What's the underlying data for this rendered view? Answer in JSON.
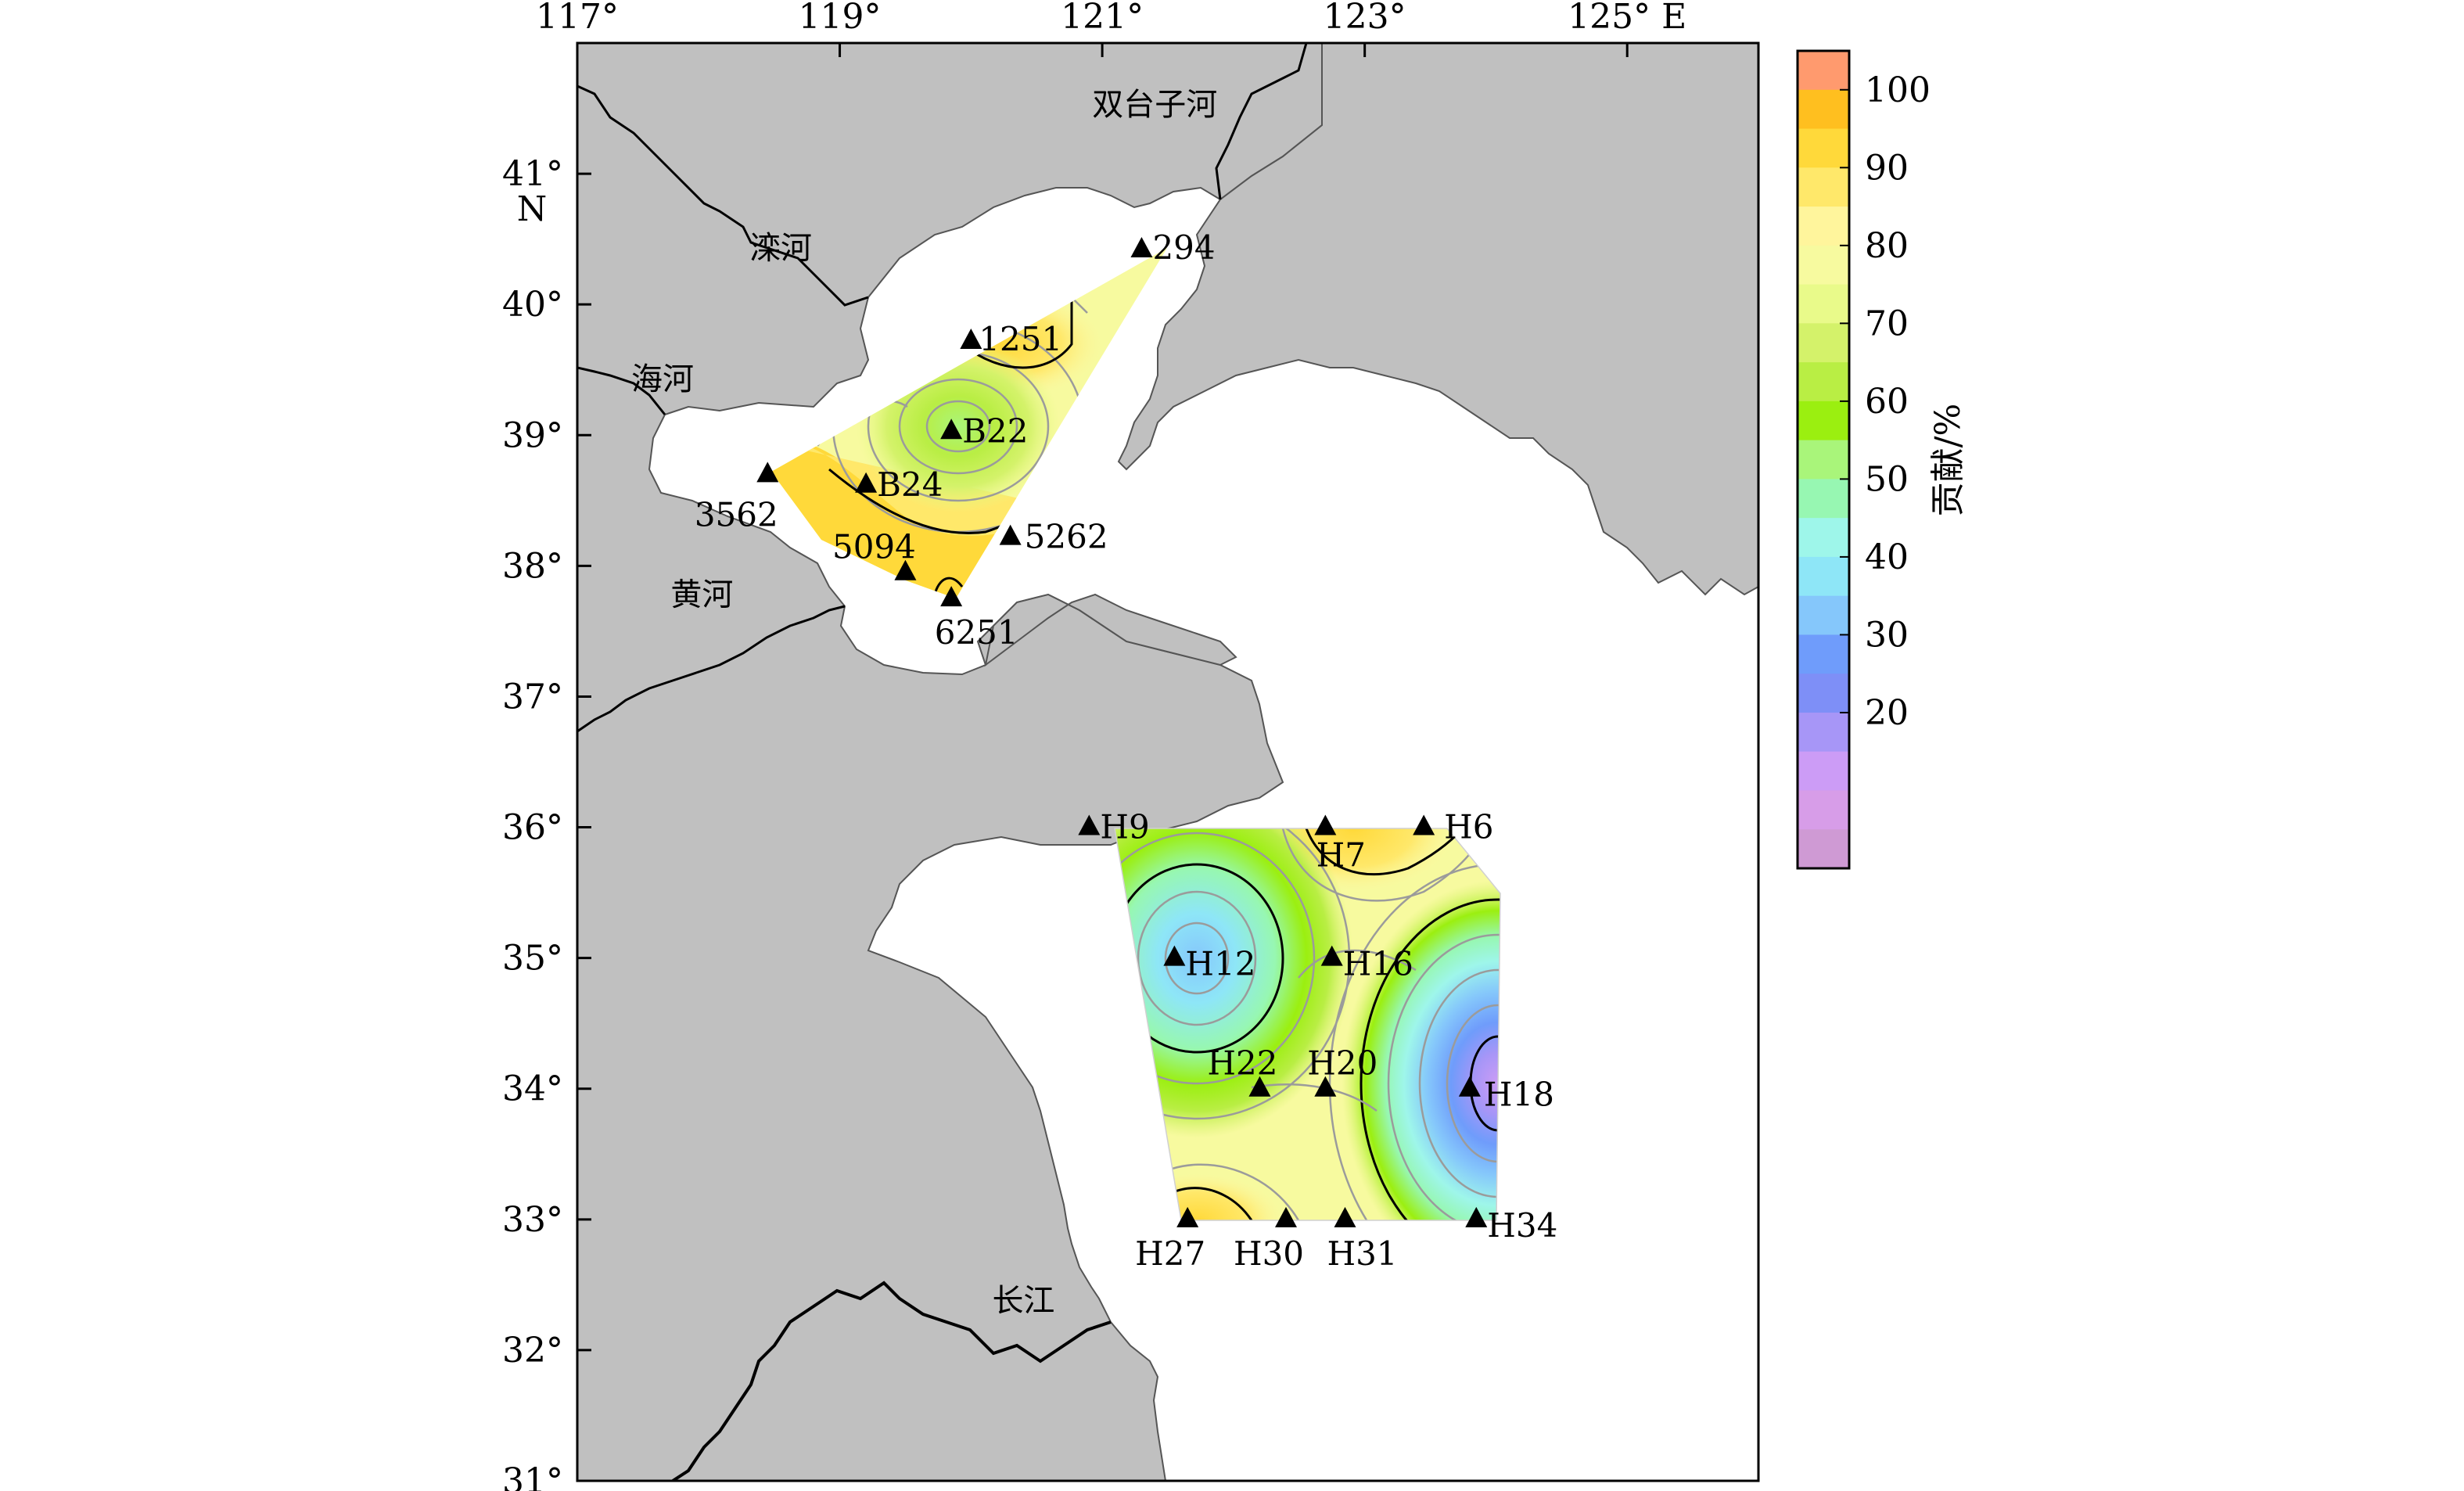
{
  "axes": {
    "lon_ticks": [
      {
        "value": 117,
        "label": "117°"
      },
      {
        "value": 119,
        "label": "119°"
      },
      {
        "value": 121,
        "label": "121°"
      },
      {
        "value": 123,
        "label": "123°"
      },
      {
        "value": 125,
        "label": "125° E"
      }
    ],
    "lat_ticks": [
      {
        "value": 41,
        "label": "41°"
      },
      {
        "value": 40,
        "label": "40°"
      },
      {
        "value": 39,
        "label": "39°"
      },
      {
        "value": 38,
        "label": "38°"
      },
      {
        "value": 37,
        "label": "37°"
      },
      {
        "value": 36,
        "label": "36°"
      },
      {
        "value": 35,
        "label": "35°"
      },
      {
        "value": 34,
        "label": "34°"
      },
      {
        "value": 33,
        "label": "33°"
      },
      {
        "value": 32,
        "label": "32°"
      },
      {
        "value": 31,
        "label": "31°"
      }
    ],
    "north_label": "N",
    "lon_range": [
      117,
      126
    ],
    "lat_range": [
      31,
      42
    ]
  },
  "places": [
    {
      "name": "双台子河",
      "lon": 121.4,
      "lat": 41.45
    },
    {
      "name": "滦河",
      "lon": 118.55,
      "lat": 40.35
    },
    {
      "name": "海河",
      "lon": 117.65,
      "lat": 39.35
    },
    {
      "name": "黄河",
      "lon": 117.95,
      "lat": 37.7
    },
    {
      "name": "长江",
      "lon": 120.4,
      "lat": 32.3
    }
  ],
  "stations": [
    {
      "id": "294",
      "lon": 121.3,
      "lat": 40.42
    },
    {
      "id": "1251",
      "lon": 120.0,
      "lat": 39.72
    },
    {
      "id": "B22",
      "lon": 119.85,
      "lat": 39.03
    },
    {
      "id": "B24",
      "lon": 119.2,
      "lat": 38.62
    },
    {
      "id": "3562",
      "lon": 118.45,
      "lat": 38.7
    },
    {
      "id": "5262",
      "lon": 120.3,
      "lat": 38.22
    },
    {
      "id": "5094",
      "lon": 119.5,
      "lat": 37.95
    },
    {
      "id": "6251",
      "lon": 119.85,
      "lat": 37.75
    },
    {
      "id": "H9",
      "lon": 120.9,
      "lat": 36.0
    },
    {
      "id": "H7",
      "lon": 122.7,
      "lat": 36.0
    },
    {
      "id": "H6",
      "lon": 123.45,
      "lat": 36.0
    },
    {
      "id": "H12",
      "lon": 121.55,
      "lat": 35.0
    },
    {
      "id": "H16",
      "lon": 122.75,
      "lat": 35.0
    },
    {
      "id": "H22",
      "lon": 122.2,
      "lat": 34.0
    },
    {
      "id": "H20",
      "lon": 122.7,
      "lat": 34.0
    },
    {
      "id": "H18",
      "lon": 123.8,
      "lat": 34.0
    },
    {
      "id": "H27",
      "lon": 121.65,
      "lat": 33.0
    },
    {
      "id": "H30",
      "lon": 122.4,
      "lat": 33.0
    },
    {
      "id": "H31",
      "lon": 122.85,
      "lat": 33.0
    },
    {
      "id": "H34",
      "lon": 123.85,
      "lat": 33.0
    }
  ],
  "colorbar": {
    "title": "贡献/%",
    "labels": [
      "100",
      "90",
      "80",
      "70",
      "60",
      "50",
      "40",
      "30",
      "20"
    ],
    "colors": [
      "#ff9a6e",
      "#ffbf1f",
      "#ffd93a",
      "#ffe86a",
      "#fff59c",
      "#f7fa9f",
      "#e9fa8a",
      "#d4f26a",
      "#b9ee44",
      "#9bef10",
      "#a9f57a",
      "#97f7b2",
      "#9ef6ea",
      "#8ee6f7",
      "#85c7fb",
      "#6f9cfb",
      "#7e8ff7",
      "#a796f7",
      "#cc9cf6",
      "#d79de8",
      "#cf9ad4"
    ]
  },
  "colors": {
    "land": "#c0c0c0",
    "sea": "#ffffff",
    "coast": "#555555",
    "river": "#000000",
    "contour": "#9b9b9b"
  }
}
